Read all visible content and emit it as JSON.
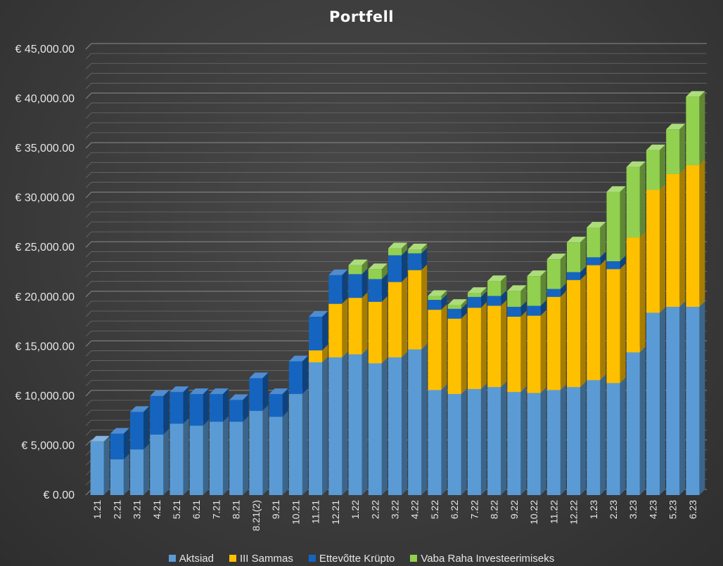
{
  "chart_data": {
    "type": "bar",
    "stacked": true,
    "title": "Portfell",
    "categories": [
      "1.21",
      "2.21",
      "3.21",
      "4.21",
      "5.21",
      "6.21",
      "7.21",
      "8.21",
      "8.21(2)",
      "9.21",
      "10.21",
      "11.21",
      "12.21",
      "1.22",
      "2.22",
      "3.22",
      "4.22",
      "5.22",
      "6.22",
      "7.22",
      "8.22",
      "9.22",
      "10.22",
      "11.22",
      "12.22",
      "1.23",
      "2.23",
      "3.23",
      "4.23",
      "5.23",
      "6.23"
    ],
    "series": [
      {
        "name": "Aktsiad",
        "color": "#5b9bd5",
        "values": [
          5400,
          3600,
          4600,
          6100,
          7200,
          7000,
          7400,
          7400,
          8500,
          7900,
          10200,
          13400,
          13900,
          14200,
          13300,
          13900,
          14700,
          10600,
          10200,
          10700,
          10900,
          10400,
          10300,
          10600,
          10900,
          11600,
          11300,
          14400,
          18400,
          19000,
          19000
        ]
      },
      {
        "name": "III Sammas",
        "color": "#ffc000",
        "values": [
          0,
          0,
          0,
          0,
          0,
          0,
          0,
          0,
          0,
          0,
          0,
          1200,
          5400,
          5700,
          6200,
          7600,
          8000,
          8100,
          7600,
          8200,
          8200,
          7600,
          7800,
          9400,
          10800,
          11600,
          11500,
          11600,
          12400,
          13400,
          14300
        ]
      },
      {
        "name": "Ettevõtte Krüpto",
        "color": "#1565c0",
        "values": [
          0,
          2600,
          3800,
          3900,
          3200,
          3200,
          2800,
          2200,
          3300,
          2300,
          3300,
          3400,
          2900,
          2400,
          2300,
          2700,
          1700,
          1000,
          1000,
          1100,
          1000,
          1000,
          1000,
          800,
          800,
          800,
          800,
          0,
          0,
          0,
          0
        ]
      },
      {
        "name": "Vaba Raha Investeerimiseks",
        "color": "#92d050",
        "values": [
          0,
          0,
          0,
          0,
          0,
          0,
          0,
          0,
          0,
          0,
          0,
          0,
          0,
          900,
          1000,
          700,
          400,
          400,
          400,
          400,
          1500,
          1600,
          3000,
          3000,
          3000,
          3000,
          7000,
          7100,
          4000,
          4500,
          6900
        ]
      }
    ],
    "y_ticks": [
      "€ 0.00",
      "€ 5,000.00",
      "€ 10,000.00",
      "€ 15,000.00",
      "€ 20,000.00",
      "€ 25,000.00",
      "€ 30,000.00",
      "€ 35,000.00",
      "€ 40,000.00",
      "€ 45,000.00"
    ],
    "ylim": [
      0,
      45000
    ],
    "grid": "minor and major horizontal",
    "legend_position": "bottom"
  }
}
